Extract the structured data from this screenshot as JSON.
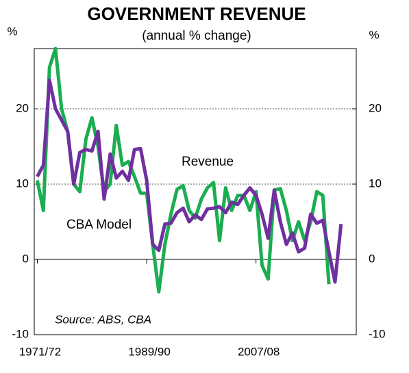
{
  "chart_data": {
    "type": "line",
    "title": "GOVERNMENT REVENUE",
    "subtitle": "(annual % change)",
    "y_label": "%",
    "y2_label": "%",
    "source": "Source: ABS, CBA",
    "x": [
      1972,
      1973,
      1974,
      1975,
      1976,
      1977,
      1978,
      1979,
      1980,
      1981,
      1982,
      1983,
      1984,
      1985,
      1986,
      1987,
      1988,
      1989,
      1990,
      1991,
      1992,
      1993,
      1994,
      1995,
      1996,
      1997,
      1998,
      1999,
      2000,
      2001,
      2002,
      2003,
      2004,
      2005,
      2006,
      2007,
      2008,
      2009,
      2010,
      2011,
      2012,
      2013,
      2014,
      2015,
      2016,
      2017,
      2018,
      2019,
      2020,
      2021,
      2022
    ],
    "series": [
      {
        "name": "Revenue",
        "color": "#1aae50",
        "values": [
          10.5,
          6.5,
          25.5,
          28,
          20,
          17,
          10,
          9,
          16,
          18.8,
          15,
          9,
          10,
          17.8,
          12.5,
          13,
          11,
          8.8,
          8.8,
          2,
          -4.3,
          2,
          6,
          9.3,
          9.8,
          6.5,
          5.5,
          8,
          9.5,
          10.2,
          2.5,
          9.5,
          6.5,
          8.5,
          8.5,
          6.5,
          9,
          -0.8,
          -2.6,
          9.2,
          9.4,
          6.5,
          2.5,
          5,
          2.5,
          5,
          9,
          8.5,
          -3.3,
          null,
          null
        ]
      },
      {
        "name": "CBA Model",
        "color": "#7030a0",
        "values": [
          11,
          12.5,
          23.8,
          20,
          18.5,
          17,
          10,
          14.2,
          14.6,
          14.4,
          17,
          8,
          14,
          10.8,
          11.7,
          10.5,
          14.6,
          14.7,
          10.5,
          2,
          1.2,
          4.7,
          4.8,
          6.2,
          6.8,
          5,
          5.9,
          5.3,
          6.7,
          6.8,
          7,
          6.2,
          7.6,
          7.3,
          8.5,
          9.5,
          8.5,
          6,
          2.8,
          9.2,
          5,
          2,
          3.5,
          1,
          1.5,
          6,
          4.8,
          5.2,
          1,
          -3,
          4.7
        ]
      }
    ],
    "xlim": [
      1971.5,
      2024.5
    ],
    "xticks": [
      {
        "value": 1972,
        "label": "1971/72"
      },
      {
        "value": 1990,
        "label": "1989/90"
      },
      {
        "value": 2008,
        "label": "2007/08"
      }
    ],
    "ylim": [
      -10,
      28
    ],
    "yticks": [
      -10,
      0,
      10,
      20
    ],
    "y2lim": [
      -10,
      28
    ],
    "y2ticks": [
      -10,
      0,
      10,
      20
    ],
    "grid": true
  }
}
